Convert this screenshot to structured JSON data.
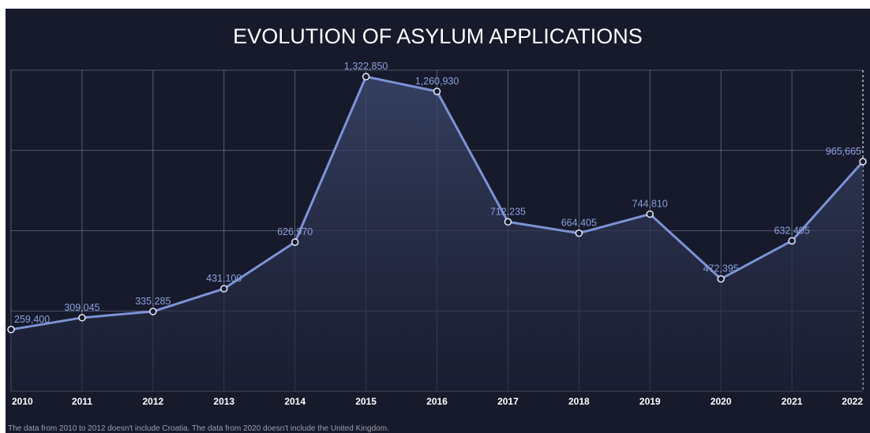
{
  "chart_data": {
    "type": "area",
    "title": "EVOLUTION OF ASYLUM APPLICATIONS",
    "x": [
      "2010",
      "2011",
      "2012",
      "2013",
      "2014",
      "2015",
      "2016",
      "2017",
      "2018",
      "2019",
      "2020",
      "2021",
      "2022"
    ],
    "values": [
      259400,
      309045,
      335285,
      431100,
      626970,
      1322850,
      1260930,
      712235,
      664405,
      744810,
      472395,
      632405,
      965665
    ],
    "data_labels": [
      "259,400",
      "309,045",
      "335,285",
      "431,100",
      "626,970",
      "1,322,850",
      "1,260,930",
      "712,235",
      "664,405",
      "744,810",
      "472,395",
      "632,405",
      "965,665"
    ],
    "ylim": [
      0,
      1350000
    ],
    "grid": true,
    "legend": "none",
    "colors": {
      "background": "#171a2b",
      "line": "#7d93d6",
      "label": "#8aa0de",
      "grid": "#8a90a8",
      "title": "#ffffff"
    }
  },
  "footnote": "The data from 2010 to 2012 doesn't include Croatia. The data from 2020 doesn't include the United Kingdom."
}
